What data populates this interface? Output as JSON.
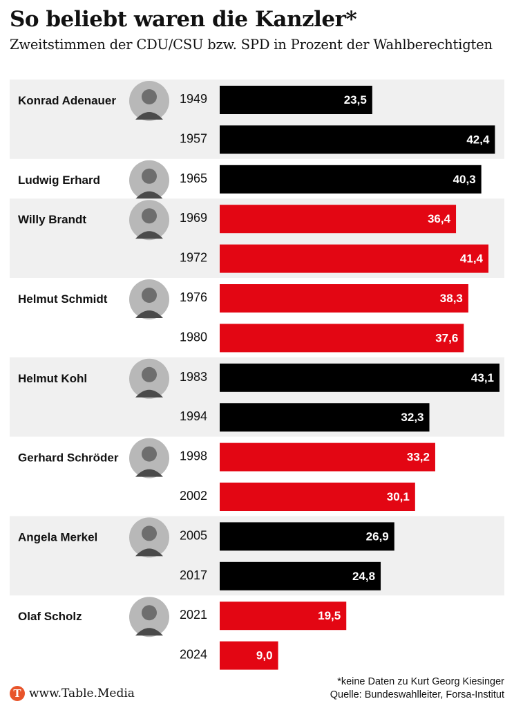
{
  "header": {
    "title": "So beliebt waren die Kanzler*",
    "subtitle": "Zweitstimmen der CDU/CSU bzw. SPD in Prozent der Wahlberechtigten"
  },
  "colors": {
    "cdu": "#000000",
    "spd": "#e30613",
    "band": "#f0f0f0"
  },
  "chart_data": {
    "type": "bar",
    "orientation": "horizontal",
    "title": "So beliebt waren die Kanzler*",
    "subtitle": "Zweitstimmen der CDU/CSU bzw. SPD in Prozent der Wahlberechtigten",
    "xlim": [
      0,
      43.1
    ],
    "grid": false,
    "chancellors": [
      {
        "name": "Konrad Adenauer",
        "party": "CDU/CSU",
        "elections": [
          {
            "year": "1949",
            "value": 23.5,
            "label": "23,5"
          },
          {
            "year": "1957",
            "value": 42.4,
            "label": "42,4"
          }
        ]
      },
      {
        "name": "Ludwig Erhard",
        "party": "CDU/CSU",
        "elections": [
          {
            "year": "1965",
            "value": 40.3,
            "label": "40,3"
          }
        ]
      },
      {
        "name": "Willy Brandt",
        "party": "SPD",
        "elections": [
          {
            "year": "1969",
            "value": 36.4,
            "label": "36,4"
          },
          {
            "year": "1972",
            "value": 41.4,
            "label": "41,4"
          }
        ]
      },
      {
        "name": "Helmut Schmidt",
        "party": "SPD",
        "elections": [
          {
            "year": "1976",
            "value": 38.3,
            "label": "38,3"
          },
          {
            "year": "1980",
            "value": 37.6,
            "label": "37,6"
          }
        ]
      },
      {
        "name": "Helmut Kohl",
        "party": "CDU/CSU",
        "elections": [
          {
            "year": "1983",
            "value": 43.1,
            "label": "43,1"
          },
          {
            "year": "1994",
            "value": 32.3,
            "label": "32,3"
          }
        ]
      },
      {
        "name": "Gerhard Schröder",
        "party": "SPD",
        "elections": [
          {
            "year": "1998",
            "value": 33.2,
            "label": "33,2"
          },
          {
            "year": "2002",
            "value": 30.1,
            "label": "30,1"
          }
        ]
      },
      {
        "name": "Angela Merkel",
        "party": "CDU/CSU",
        "elections": [
          {
            "year": "2005",
            "value": 26.9,
            "label": "26,9"
          },
          {
            "year": "2017",
            "value": 24.8,
            "label": "24,8"
          }
        ]
      },
      {
        "name": "Olaf Scholz",
        "party": "SPD",
        "elections": [
          {
            "year": "2021",
            "value": 19.5,
            "label": "19,5"
          },
          {
            "year": "2024",
            "value": 9.0,
            "label": "9,0"
          }
        ]
      }
    ]
  },
  "footer": {
    "logo_letter": "T",
    "logo_text": "www.Table.Media",
    "note": "*keine Daten zu Kurt Georg Kiesinger",
    "source": "Quelle: Bundeswahlleiter, Forsa-Institut"
  }
}
